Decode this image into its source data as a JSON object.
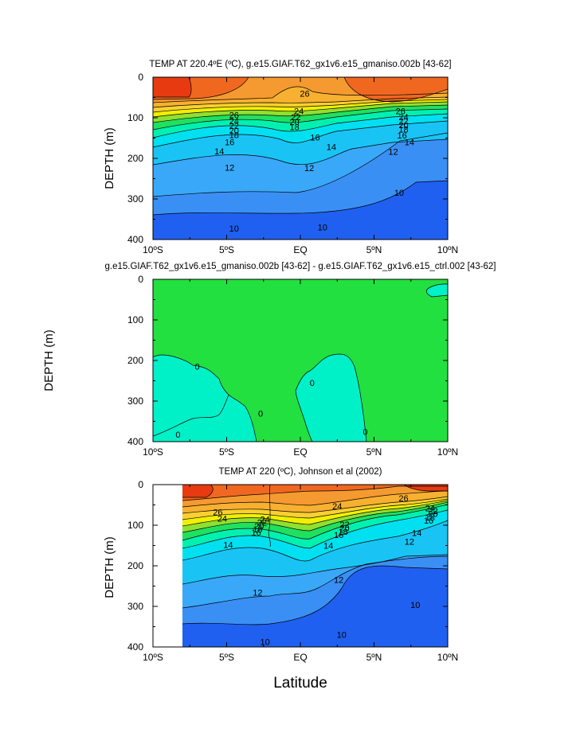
{
  "figure": {
    "xlabel": "Latitude"
  },
  "chart_data": [
    {
      "type": "heatmap",
      "title": "TEMP AT 220.4ºE (ºC), g.e15.GIAF.T62_gx1v6.e15_gmaniso.002b [43-62]",
      "xlabel": "",
      "ylabel": "DEPTH (m)",
      "x_ticks": [
        "10ºS",
        "5ºS",
        "EQ",
        "5ºN",
        "10ºN"
      ],
      "y_ticks": [
        "0",
        "100",
        "200",
        "300",
        "400"
      ],
      "xlim": [
        -10,
        10
      ],
      "ylim": [
        400,
        0
      ],
      "contour_labels": [
        {
          "text": "26",
          "x": 0.3,
          "y": 40
        },
        {
          "text": "26",
          "x": -4.5,
          "y": 93
        },
        {
          "text": "24",
          "x": -4.5,
          "y": 108
        },
        {
          "text": "22",
          "x": -4.5,
          "y": 120
        },
        {
          "text": "20",
          "x": -4.5,
          "y": 131
        },
        {
          "text": "18",
          "x": -4.5,
          "y": 142
        },
        {
          "text": "16",
          "x": -4.8,
          "y": 160
        },
        {
          "text": "14",
          "x": -5.5,
          "y": 182
        },
        {
          "text": "12",
          "x": -4.8,
          "y": 223
        },
        {
          "text": "24",
          "x": -0.1,
          "y": 83
        },
        {
          "text": "22",
          "x": -0.3,
          "y": 98
        },
        {
          "text": "20",
          "x": -0.4,
          "y": 110
        },
        {
          "text": "18",
          "x": -0.4,
          "y": 123
        },
        {
          "text": "16",
          "x": 1.0,
          "y": 148
        },
        {
          "text": "14",
          "x": 2.1,
          "y": 172
        },
        {
          "text": "12",
          "x": 0.6,
          "y": 224
        },
        {
          "text": "26",
          "x": 6.8,
          "y": 83
        },
        {
          "text": "24",
          "x": 7.0,
          "y": 98
        },
        {
          "text": "22",
          "x": 7.0,
          "y": 108
        },
        {
          "text": "20",
          "x": 7.0,
          "y": 118
        },
        {
          "text": "18",
          "x": 7.0,
          "y": 128
        },
        {
          "text": "16",
          "x": 6.9,
          "y": 143
        },
        {
          "text": "14",
          "x": 7.4,
          "y": 160
        },
        {
          "text": "12",
          "x": 6.3,
          "y": 183
        },
        {
          "text": "10",
          "x": 6.7,
          "y": 284
        },
        {
          "text": "10",
          "x": -4.5,
          "y": 373
        },
        {
          "text": "10",
          "x": 1.5,
          "y": 370
        }
      ]
    },
    {
      "type": "heatmap",
      "title": "g.e15.GIAF.T62_gx1v6.e15_gmaniso.002b [43-62] - g.e15.GIAF.T62_gx1v6.e15_ctrl.002 [43-62]",
      "xlabel": "",
      "ylabel": "DEPTH (m)",
      "x_ticks": [
        "10ºS",
        "5ºS",
        "EQ",
        "5ºN",
        "10ºN"
      ],
      "y_ticks": [
        "0",
        "100",
        "200",
        "300",
        "400"
      ],
      "xlim": [
        -10,
        10
      ],
      "ylim": [
        400,
        0
      ],
      "contour_labels": [
        {
          "text": "0",
          "x": -7.0,
          "y": 215
        },
        {
          "text": "0",
          "x": -2.7,
          "y": 330
        },
        {
          "text": "0",
          "x": -8.3,
          "y": 382
        },
        {
          "text": "0",
          "x": 0.8,
          "y": 255
        },
        {
          "text": "0",
          "x": 4.4,
          "y": 375
        }
      ]
    },
    {
      "type": "heatmap",
      "title": "TEMP AT 220 (ºC), Johnson et al (2002)",
      "xlabel": "",
      "ylabel": "DEPTH (m)",
      "x_ticks": [
        "10ºS",
        "5ºS",
        "EQ",
        "5ºN",
        "10ºN"
      ],
      "y_ticks": [
        "0",
        "100",
        "200",
        "300",
        "400"
      ],
      "xlim": [
        -10,
        10
      ],
      "ylim": [
        400,
        0
      ],
      "data_xrange": [
        -8,
        10
      ],
      "contour_labels": [
        {
          "text": "26",
          "x": -5.6,
          "y": 68
        },
        {
          "text": "24",
          "x": -5.3,
          "y": 83
        },
        {
          "text": "24",
          "x": -2.4,
          "y": 85
        },
        {
          "text": "22",
          "x": -2.6,
          "y": 93
        },
        {
          "text": "20",
          "x": -2.8,
          "y": 102
        },
        {
          "text": "18",
          "x": -2.9,
          "y": 110
        },
        {
          "text": "16",
          "x": -3.0,
          "y": 118
        },
        {
          "text": "14",
          "x": -4.9,
          "y": 148
        },
        {
          "text": "24",
          "x": 2.5,
          "y": 53
        },
        {
          "text": "22",
          "x": 3.0,
          "y": 98
        },
        {
          "text": "20",
          "x": 3.0,
          "y": 107
        },
        {
          "text": "18",
          "x": 2.9,
          "y": 116
        },
        {
          "text": "16",
          "x": 2.6,
          "y": 124
        },
        {
          "text": "14",
          "x": 1.9,
          "y": 150
        },
        {
          "text": "26",
          "x": 7.0,
          "y": 33
        },
        {
          "text": "24",
          "x": 8.8,
          "y": 58
        },
        {
          "text": "22",
          "x": 9.0,
          "y": 65
        },
        {
          "text": "20",
          "x": 9.0,
          "y": 72
        },
        {
          "text": "18",
          "x": 8.8,
          "y": 80
        },
        {
          "text": "16",
          "x": 8.7,
          "y": 88
        },
        {
          "text": "14",
          "x": 7.9,
          "y": 119
        },
        {
          "text": "12",
          "x": 7.4,
          "y": 140
        },
        {
          "text": "12",
          "x": 2.6,
          "y": 234
        },
        {
          "text": "12",
          "x": -2.9,
          "y": 266
        },
        {
          "text": "10",
          "x": 7.8,
          "y": 296
        },
        {
          "text": "10",
          "x": 2.8,
          "y": 370
        },
        {
          "text": "10",
          "x": -2.4,
          "y": 387
        }
      ]
    }
  ]
}
